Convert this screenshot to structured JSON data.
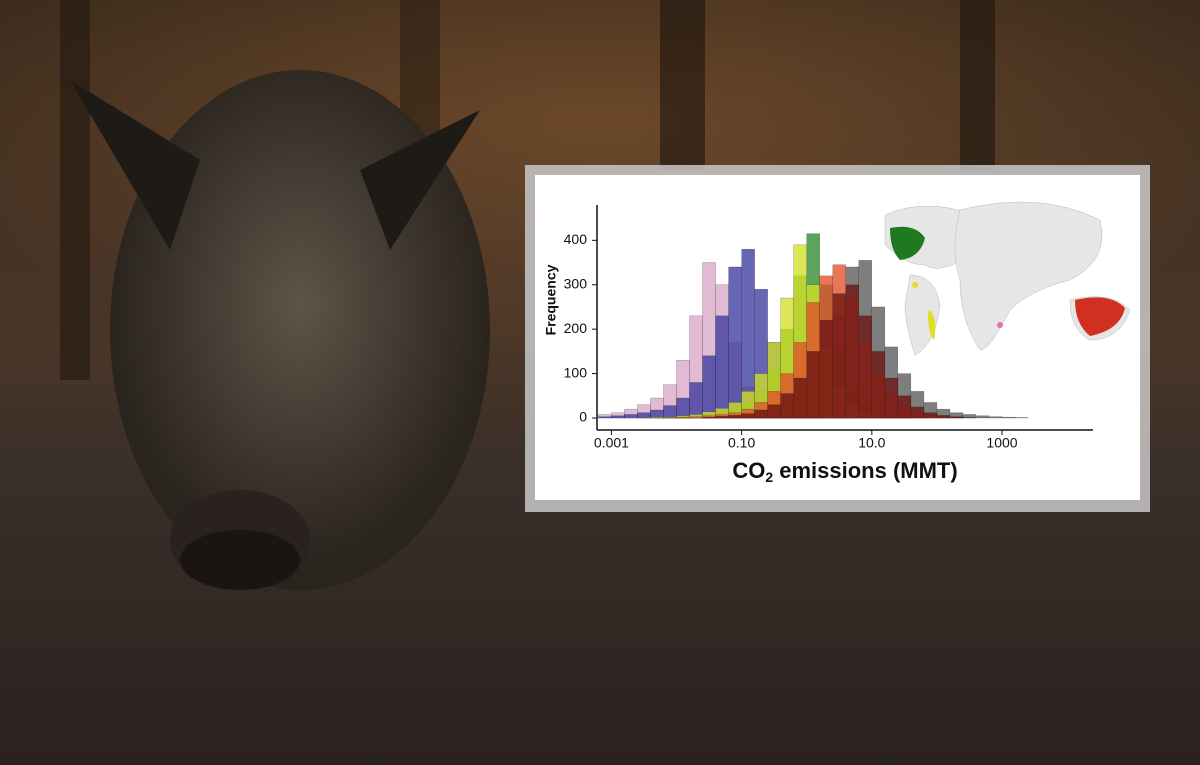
{
  "chart_data": {
    "type": "histogram",
    "xlabel": {
      "main": "CO",
      "sub": "2",
      "rest": " emissions (MMT)"
    },
    "ylabel": "Frequency",
    "log_x": true,
    "xlim": [
      0.0006,
      25000
    ],
    "ylim": [
      0,
      430
    ],
    "xticks": [
      0.001,
      {
        "value": 0.1,
        "label": "0.10"
      },
      {
        "value": 10,
        "label": "10.0"
      },
      1000
    ],
    "yticks": [
      0,
      100,
      200,
      300,
      400
    ],
    "bins": [
      0.000631,
      0.001,
      0.001585,
      0.002512,
      0.003981,
      0.00631,
      0.01,
      0.01585,
      0.02512,
      0.03981,
      0.0631,
      0.1,
      0.1585,
      0.2512,
      0.3981,
      0.631,
      1,
      1.585,
      2.512,
      3.981,
      6.31,
      10,
      15.85,
      25.12,
      39.81,
      63.1,
      100,
      158.5,
      251.2,
      398.1,
      631,
      1000,
      1585,
      2512
    ],
    "series": [
      {
        "color": "#5a5a5a",
        "values": [
          0,
          0,
          0,
          0,
          0,
          0,
          0,
          0,
          0,
          0,
          3,
          5,
          8,
          14,
          25,
          45,
          80,
          140,
          230,
          340,
          355,
          250,
          160,
          100,
          60,
          35,
          20,
          12,
          8,
          5,
          3,
          2,
          1
        ]
      },
      {
        "color": "#d9a6c6",
        "values": [
          8,
          12,
          20,
          30,
          45,
          75,
          130,
          230,
          350,
          300,
          170,
          70,
          25,
          10,
          4,
          2,
          1,
          0,
          0,
          0,
          0,
          0,
          0,
          0,
          0,
          0,
          0,
          0,
          0,
          0,
          0,
          0,
          0
        ]
      },
      {
        "color": "#3b3ba0",
        "values": [
          3,
          5,
          8,
          12,
          18,
          28,
          45,
          80,
          140,
          230,
          340,
          380,
          290,
          170,
          80,
          35,
          15,
          6,
          3,
          1,
          0,
          0,
          0,
          0,
          0,
          0,
          0,
          0,
          0,
          0,
          0,
          0,
          0
        ]
      },
      {
        "color": "#2e8b2e",
        "values": [
          0,
          0,
          0,
          0,
          1,
          2,
          3,
          5,
          8,
          12,
          20,
          35,
          60,
          110,
          200,
          320,
          415,
          300,
          150,
          70,
          30,
          12,
          5,
          2,
          1,
          0,
          0,
          0,
          0,
          0,
          0,
          0,
          0
        ]
      },
      {
        "color": "#d4e025",
        "values": [
          0,
          0,
          0,
          1,
          2,
          3,
          5,
          8,
          14,
          22,
          35,
          60,
          100,
          170,
          270,
          390,
          300,
          160,
          70,
          30,
          12,
          5,
          2,
          1,
          0,
          0,
          0,
          0,
          0,
          0,
          0,
          0,
          0
        ]
      },
      {
        "color": "#e2502a",
        "values": [
          0,
          0,
          0,
          0,
          0,
          1,
          2,
          3,
          5,
          8,
          12,
          20,
          35,
          60,
          100,
          170,
          260,
          320,
          345,
          270,
          170,
          100,
          55,
          28,
          14,
          7,
          3,
          1,
          0,
          0,
          0,
          0,
          0
        ]
      },
      {
        "color": "#6b1212",
        "values": [
          0,
          0,
          0,
          0,
          0,
          0,
          0,
          0,
          2,
          4,
          6,
          10,
          18,
          30,
          55,
          90,
          150,
          220,
          280,
          300,
          230,
          150,
          90,
          50,
          25,
          12,
          6,
          3,
          1,
          0,
          0,
          0,
          0
        ]
      }
    ]
  }
}
